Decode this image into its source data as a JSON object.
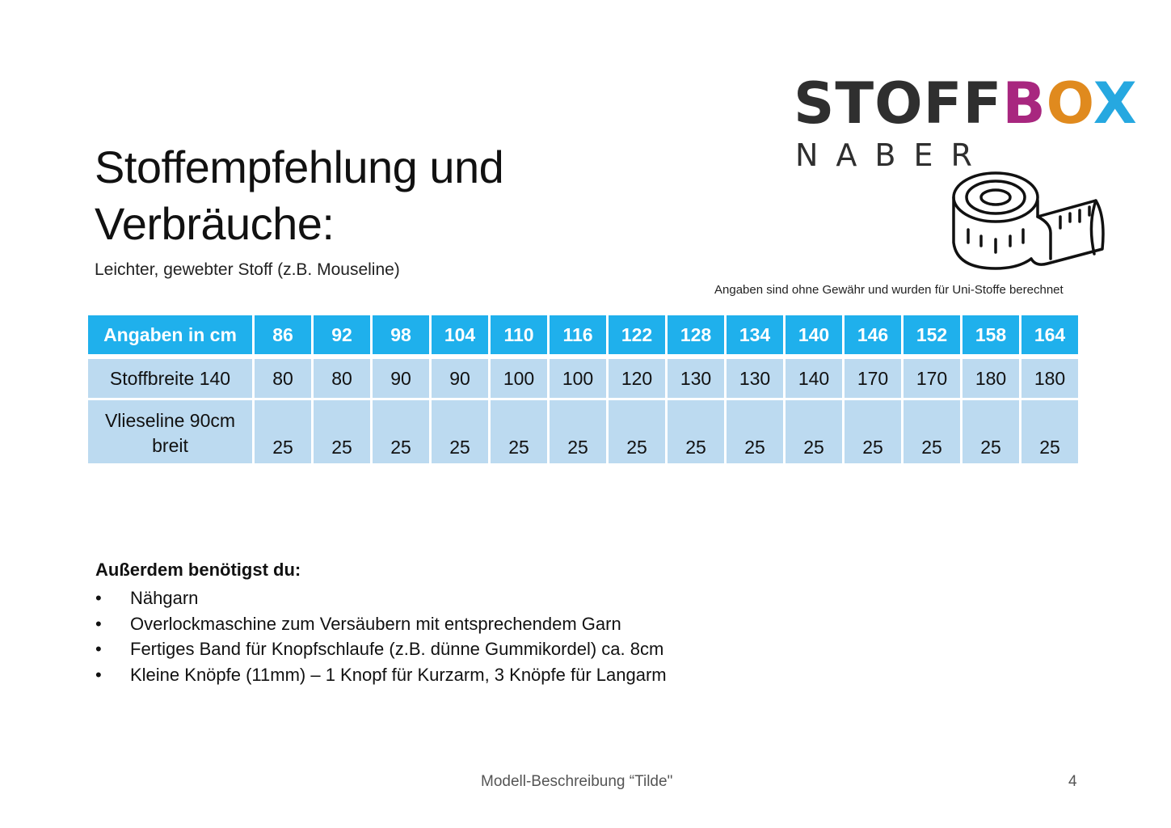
{
  "logo": {
    "word_stoff": "STOFF",
    "word_b": "B",
    "word_o": "O",
    "word_x": "X",
    "subtitle": "NABER",
    "icon": "measuring-tape-icon"
  },
  "title_line1": "Stoffempfehlung und",
  "title_line2": "Verbräuche:",
  "subtitle": "Leichter, gewebter Stoff (z.B. Mouseline)",
  "disclaimer": "Angaben sind ohne Gewähr und wurden für Uni-Stoffe berechnet",
  "table": {
    "header_label": "Angaben in cm",
    "sizes": [
      "86",
      "92",
      "98",
      "104",
      "110",
      "116",
      "122",
      "128",
      "134",
      "140",
      "146",
      "152",
      "158",
      "164"
    ],
    "rows": [
      {
        "label": "Stoffbreite 140",
        "values": [
          "80",
          "80",
          "90",
          "90",
          "100",
          "100",
          "120",
          "130",
          "130",
          "140",
          "170",
          "170",
          "180",
          "180"
        ]
      },
      {
        "label_line1": "Vlieseline 90cm",
        "label_line2": "breit",
        "values": [
          "25",
          "25",
          "25",
          "25",
          "25",
          "25",
          "25",
          "25",
          "25",
          "25",
          "25",
          "25",
          "25",
          "25"
        ]
      }
    ]
  },
  "extras": {
    "heading": "Außerdem benötigst du:",
    "bullet": "•",
    "items": [
      "Nähgarn",
      "Overlockmaschine zum Versäubern mit entsprechendem Garn",
      "Fertiges Band für Knopfschlaufe (z.B. dünne Gummikordel) ca. 8cm",
      "Kleine Knöpfe (11mm) – 1 Knopf für Kurzarm, 3 Knöpfe für Langarm"
    ]
  },
  "footer": "Modell-Beschreibung “Tilde\"",
  "page_number": "4",
  "colors": {
    "table_header": "#1fb0ec",
    "table_body": "#bcdaf0",
    "logo_b": "#a8277f",
    "logo_o": "#e08a1e",
    "logo_x": "#26a8e0"
  }
}
